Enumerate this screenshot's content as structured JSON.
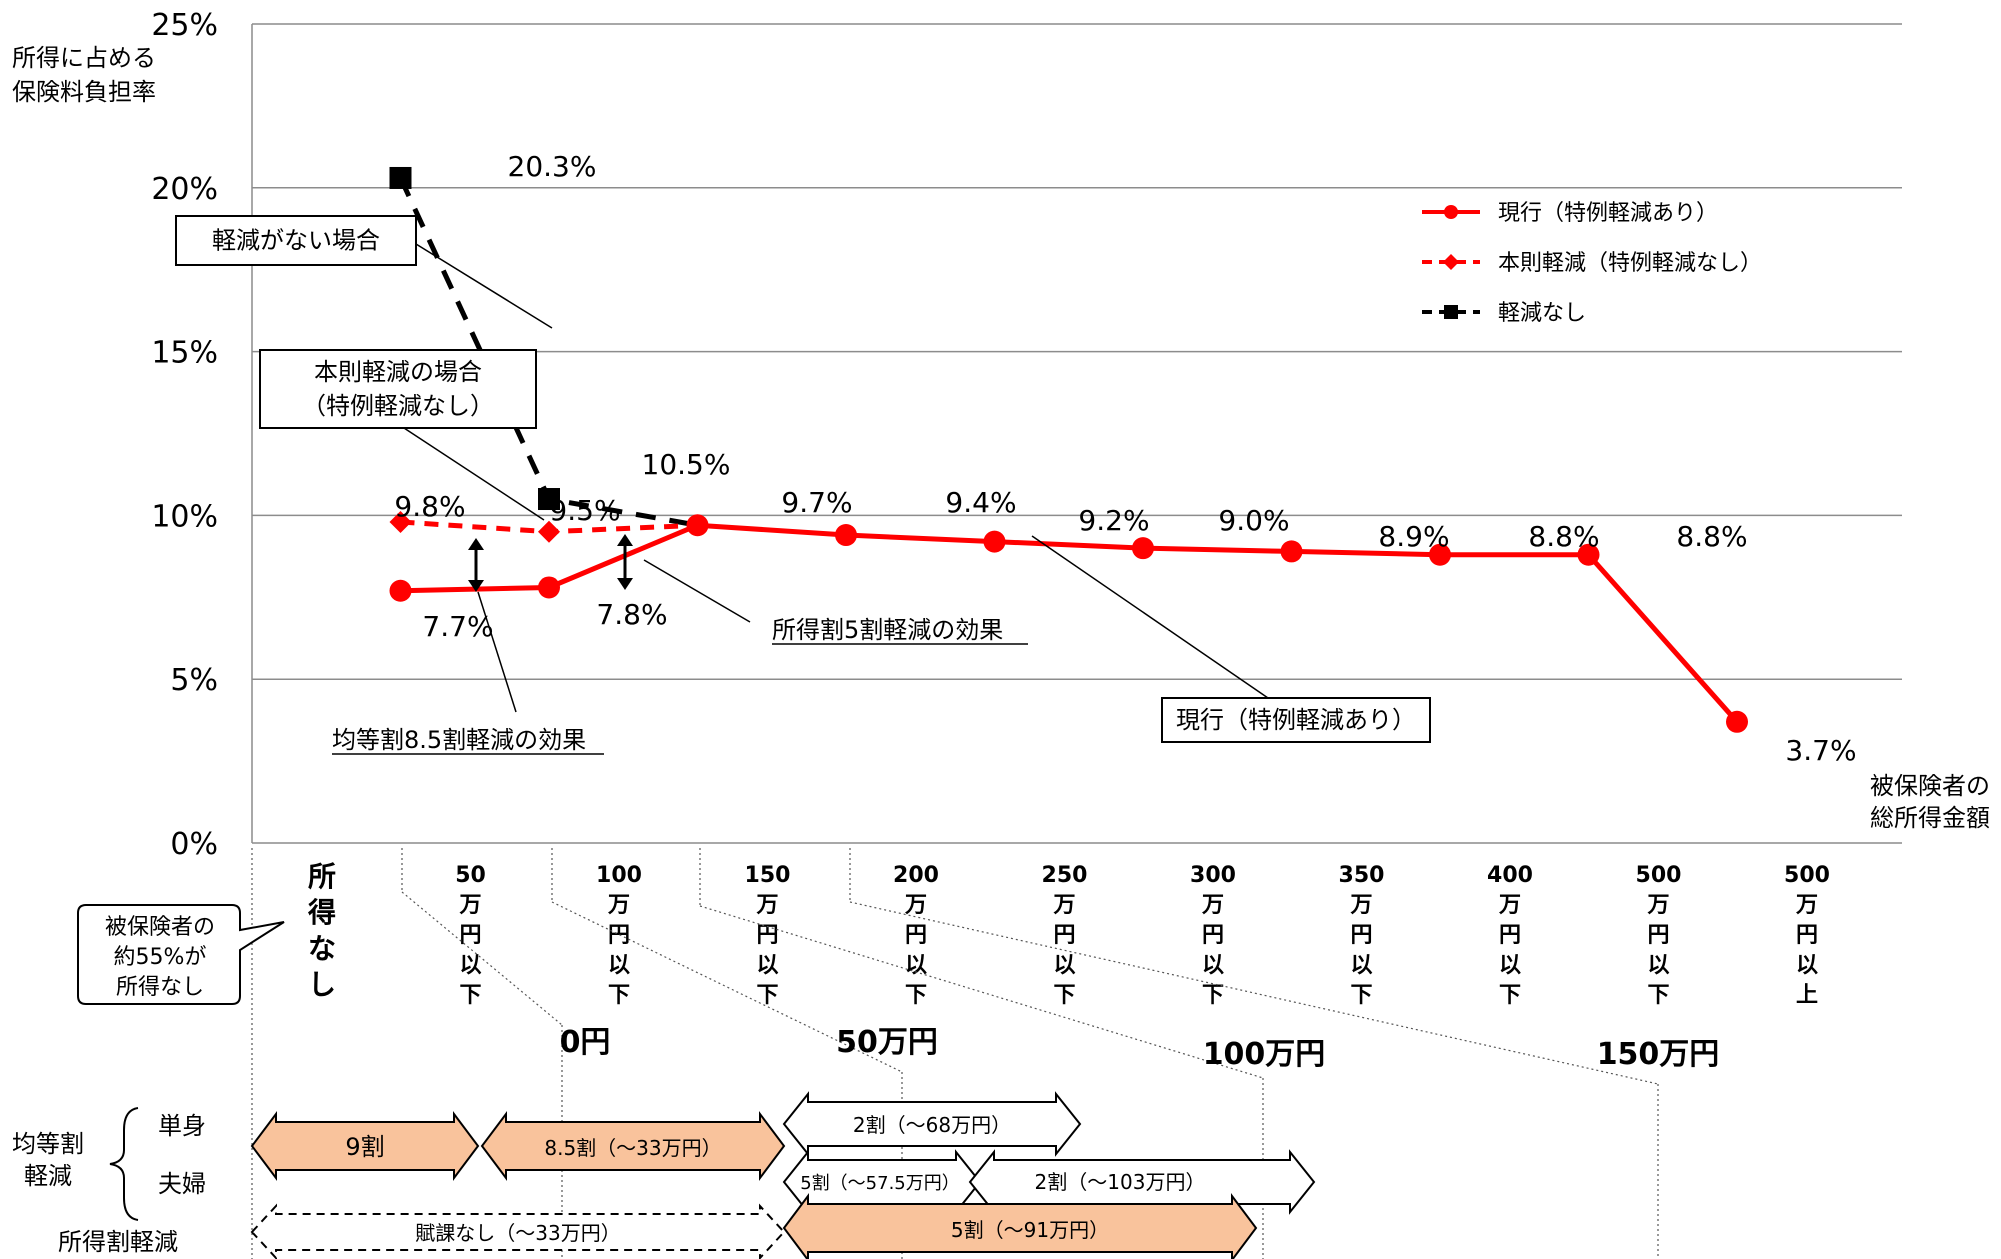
{
  "chart_data": {
    "type": "line",
    "ylabel": [
      "所得に占める",
      "保険料負担率"
    ],
    "xlabel": [
      "被保険者の",
      "総所得金額"
    ],
    "ylim": [
      0,
      25
    ],
    "yticks": [
      "0%",
      "5%",
      "10%",
      "15%",
      "20%",
      "25%"
    ],
    "grid": true,
    "legend_position": "top-right",
    "categories": [
      [
        "所",
        "得",
        "な",
        "し"
      ],
      [
        "50",
        "万",
        "円",
        "以",
        "下"
      ],
      [
        "100",
        "万",
        "円",
        "以",
        "下"
      ],
      [
        "150",
        "万",
        "円",
        "以",
        "下"
      ],
      [
        "200",
        "万",
        "円",
        "以",
        "下"
      ],
      [
        "250",
        "万",
        "円",
        "以",
        "下"
      ],
      [
        "300",
        "万",
        "円",
        "以",
        "下"
      ],
      [
        "350",
        "万",
        "円",
        "以",
        "下"
      ],
      [
        "400",
        "万",
        "円",
        "以",
        "下"
      ],
      [
        "500",
        "万",
        "円",
        "以",
        "下"
      ],
      [
        "500",
        "万",
        "円",
        "以",
        "上"
      ]
    ],
    "series": [
      {
        "name": "現行（特例軽減あり）",
        "color": "#ff0000",
        "style": "solid",
        "marker": "circle",
        "x": [
          1,
          2,
          3,
          4,
          5,
          6,
          7,
          8,
          9,
          10
        ],
        "values": [
          7.7,
          7.8,
          9.7,
          9.4,
          9.2,
          9.0,
          8.9,
          8.8,
          8.8,
          3.7
        ],
        "labels": [
          "7.7%",
          "7.8%",
          "9.7%",
          "9.4%",
          "9.2%",
          "9.0%",
          "8.9%",
          "8.8%",
          "8.8%",
          "3.7%"
        ]
      },
      {
        "name": "本則軽減（特例軽減なし）",
        "color": "#ff0000",
        "style": "dashed",
        "marker": "diamond",
        "x": [
          1,
          2,
          3
        ],
        "values": [
          9.8,
          9.5,
          9.7
        ],
        "labels": [
          "9.8%",
          "9.5%",
          ""
        ]
      },
      {
        "name": "軽減なし",
        "color": "#000000",
        "style": "dashed",
        "marker": "square",
        "x": [
          1,
          2,
          3
        ],
        "values": [
          20.3,
          10.5,
          9.7
        ],
        "labels": [
          "20.3%",
          "10.5%",
          ""
        ]
      }
    ],
    "annotations": {
      "no_reduction": "軽減がない場合",
      "standard_reduction": [
        "本則軽減の場合",
        "（特例軽減なし）"
      ],
      "current": "現行（特例軽減あり）",
      "income_effect": "所得割5割軽減の効果",
      "equal_effect": "均等割8.5割軽減の効果",
      "callout": [
        "被保険者の",
        "約55%が",
        "所得なし"
      ]
    },
    "income_zones": [
      "0円",
      "50万円",
      "100万円",
      "150万円"
    ],
    "reduction_table": {
      "equal_label": [
        "均等割",
        "軽減"
      ],
      "single": "単身",
      "couple": "夫婦",
      "income_label": "所得割軽減",
      "bar_9": "9割",
      "bar_85": "8.5割（～33万円）",
      "bar_2_single": "2割（～68万円）",
      "bar_5_couple": "5割（～57.5万円）",
      "bar_2_couple": "2割（～103万円）",
      "bar_none": "賦課なし（～33万円）",
      "bar_5_income": "5割（～91万円）"
    }
  }
}
